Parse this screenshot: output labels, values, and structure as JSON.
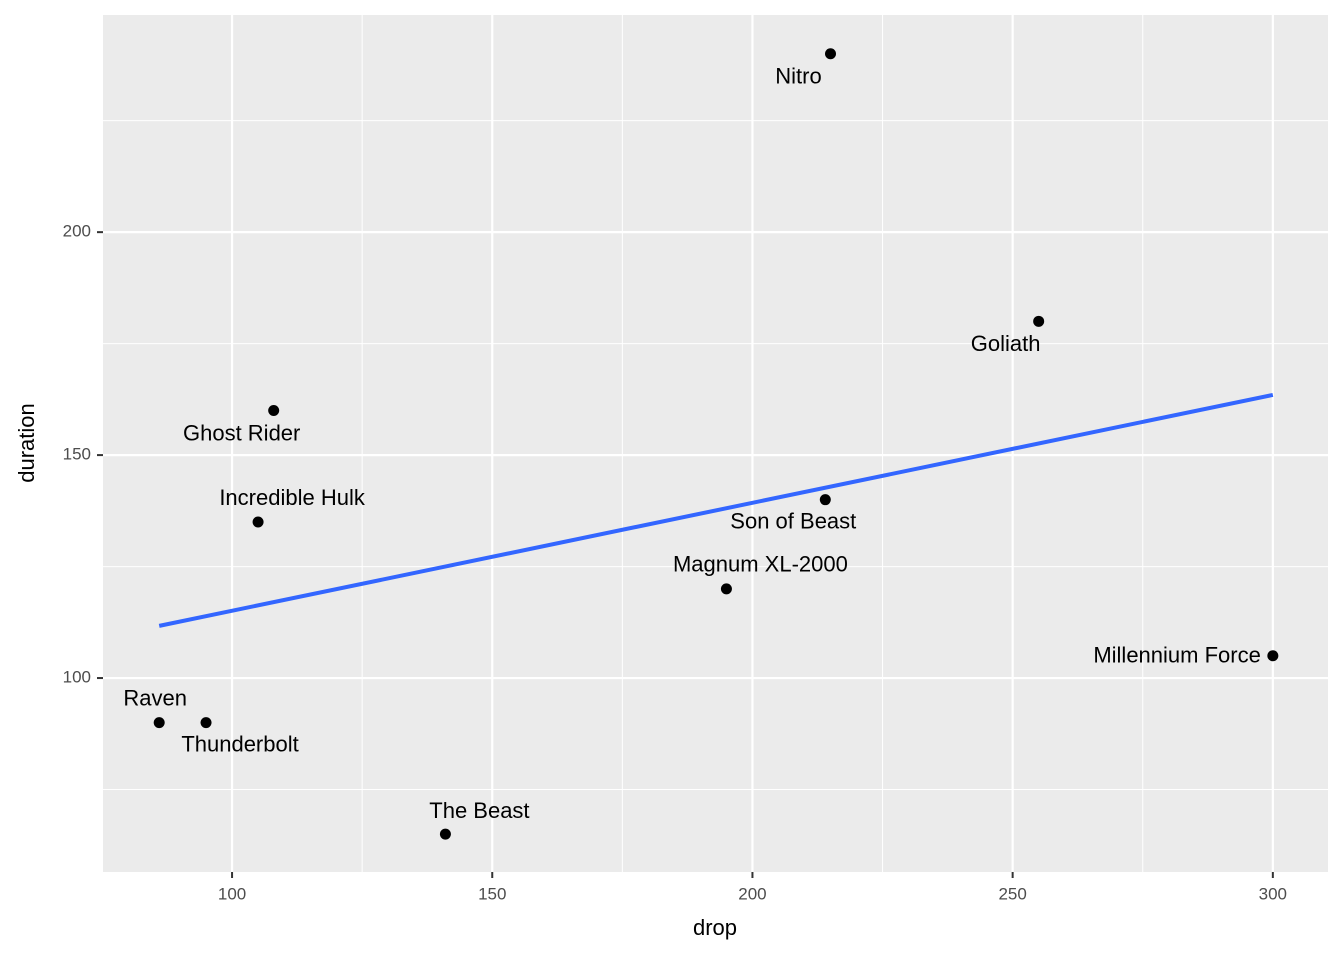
{
  "chart_data": {
    "type": "scatter",
    "x_label": "drop",
    "y_label": "duration",
    "point_labels": [
      "Nitro",
      "Goliath",
      "Ghost Rider",
      "Incredible Hulk",
      "Son of Beast",
      "Magnum XL-2000",
      "Millennium Force",
      "Raven",
      "Thunderbolt",
      "The Beast"
    ],
    "x": [
      215,
      255,
      108,
      105,
      214,
      195,
      300,
      86,
      95,
      141
    ],
    "values": [
      240,
      180,
      160,
      135,
      140,
      120,
      105,
      90,
      90,
      65
    ],
    "color": "#000000",
    "trend": {
      "x": [
        86,
        300
      ],
      "y": [
        111.7,
        163.5
      ],
      "color": "#3366ff"
    },
    "xlim": [
      75.2,
      310.6
    ],
    "ylim": [
      56.5,
      248.7
    ],
    "xticks": [
      100,
      150,
      200,
      250,
      300
    ],
    "yticks": [
      100,
      150,
      200
    ],
    "minor_xticks": [
      125,
      175,
      225,
      275
    ],
    "minor_yticks": [
      75,
      125,
      175,
      225
    ],
    "grid": true
  }
}
